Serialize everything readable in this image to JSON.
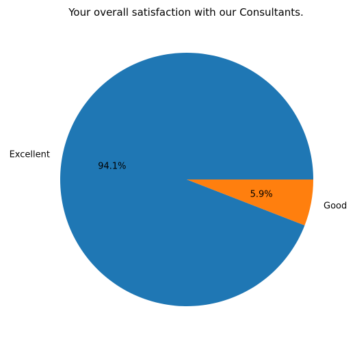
{
  "chart_data": {
    "type": "pie",
    "title": "Your overall satisfaction with our Consultants.",
    "slices": [
      {
        "label": "Excellent",
        "value": 94.1,
        "pct_label": "94.1%",
        "color": "#1f77b4"
      },
      {
        "label": "Good",
        "value": 5.9,
        "pct_label": "5.9%",
        "color": "#ff7f0e"
      }
    ],
    "start_angle": 0,
    "direction": "counterclockwise",
    "legend": "none"
  }
}
